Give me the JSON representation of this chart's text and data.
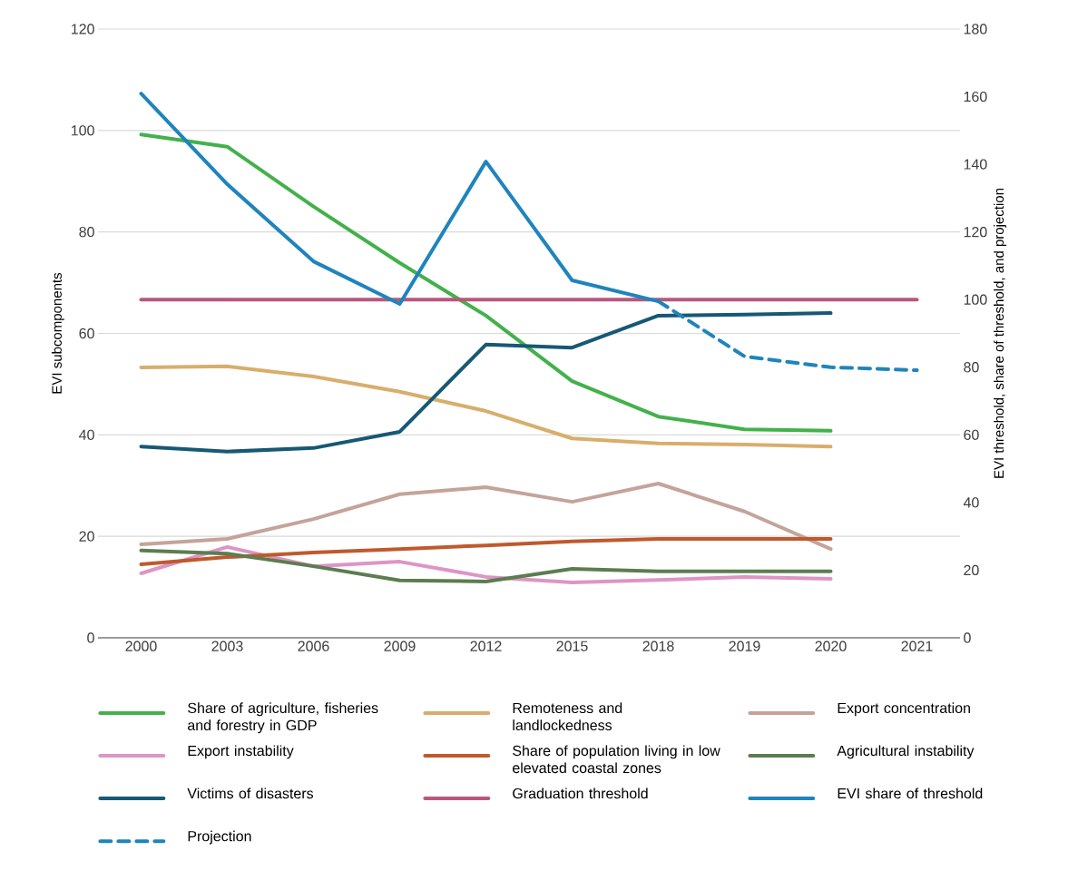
{
  "chart_data": {
    "type": "line",
    "ylabel": "EVI subcomponents",
    "y2label": "EVI threshold, share of threshold, and projection",
    "categories": [
      "2000",
      "2003",
      "2006",
      "2009",
      "2012",
      "2015",
      "2018",
      "2019",
      "2020",
      "2021"
    ],
    "ylim": [
      0,
      120
    ],
    "yticks": [
      0,
      20,
      40,
      60,
      80,
      100,
      120
    ],
    "y2lim": [
      0,
      180
    ],
    "y2ticks": [
      0,
      20,
      40,
      60,
      80,
      100,
      120,
      140,
      160,
      180
    ],
    "grid": "y",
    "legend": "bottom",
    "marker": "none",
    "series": [
      {
        "name": "Share of agriculture, fisheries and forestry in GDP",
        "color": "#43b14b",
        "values": [
          99.2,
          96.8,
          85,
          73.9,
          63.5,
          50.6,
          43.6,
          41.1,
          40.8,
          null
        ]
      },
      {
        "name": "Remoteness and landlockedness",
        "color": "#d7ae6c",
        "values": [
          53.3,
          53.5,
          51.5,
          48.5,
          44.7,
          39.3,
          38.3,
          38.1,
          37.7,
          null
        ]
      },
      {
        "name": "Export concentration",
        "color": "#c4a49a",
        "values": [
          18.4,
          19.5,
          23.4,
          28.3,
          29.7,
          26.8,
          30.4,
          24.9,
          17.5,
          null
        ]
      },
      {
        "name": "Export instability",
        "color": "#dd95c5",
        "values": [
          12.7,
          17.9,
          14.1,
          15.0,
          12.0,
          10.9,
          11.4,
          12.0,
          11.6,
          null
        ]
      },
      {
        "name": "Share of population living in low elevated coastal zones",
        "color": "#c0592e",
        "values": [
          14.5,
          15.9,
          16.8,
          17.5,
          18.2,
          19.0,
          19.5,
          19.5,
          19.5,
          null
        ]
      },
      {
        "name": "Agricultural instability",
        "color": "#5c7d4f",
        "values": [
          17.2,
          16.6,
          14.1,
          11.3,
          11.1,
          13.6,
          13.1,
          13.1,
          13.1,
          null
        ]
      },
      {
        "name": "Victims of disasters",
        "color": "#175874",
        "values": [
          37.7,
          36.7,
          37.4,
          40.6,
          57.8,
          57.2,
          63.5,
          63.7,
          64.0,
          null
        ]
      },
      {
        "name": "Graduation threshold",
        "color": "#b8577d",
        "axis": "y2",
        "values": [
          100,
          100,
          100,
          100,
          100,
          100,
          100,
          100,
          100,
          100
        ]
      },
      {
        "name": "EVI share of threshold",
        "color": "#1f84bd",
        "axis": "y2",
        "values": [
          160.9,
          134.1,
          111.3,
          98.7,
          140.8,
          105.7,
          99.5,
          null,
          null,
          null
        ]
      },
      {
        "name": "Projection",
        "color": "#1f84bd",
        "axis": "y2",
        "line_style": "dashed",
        "values": [
          null,
          null,
          null,
          null,
          null,
          null,
          99.5,
          83.2,
          80.0,
          79.1
        ]
      }
    ]
  }
}
